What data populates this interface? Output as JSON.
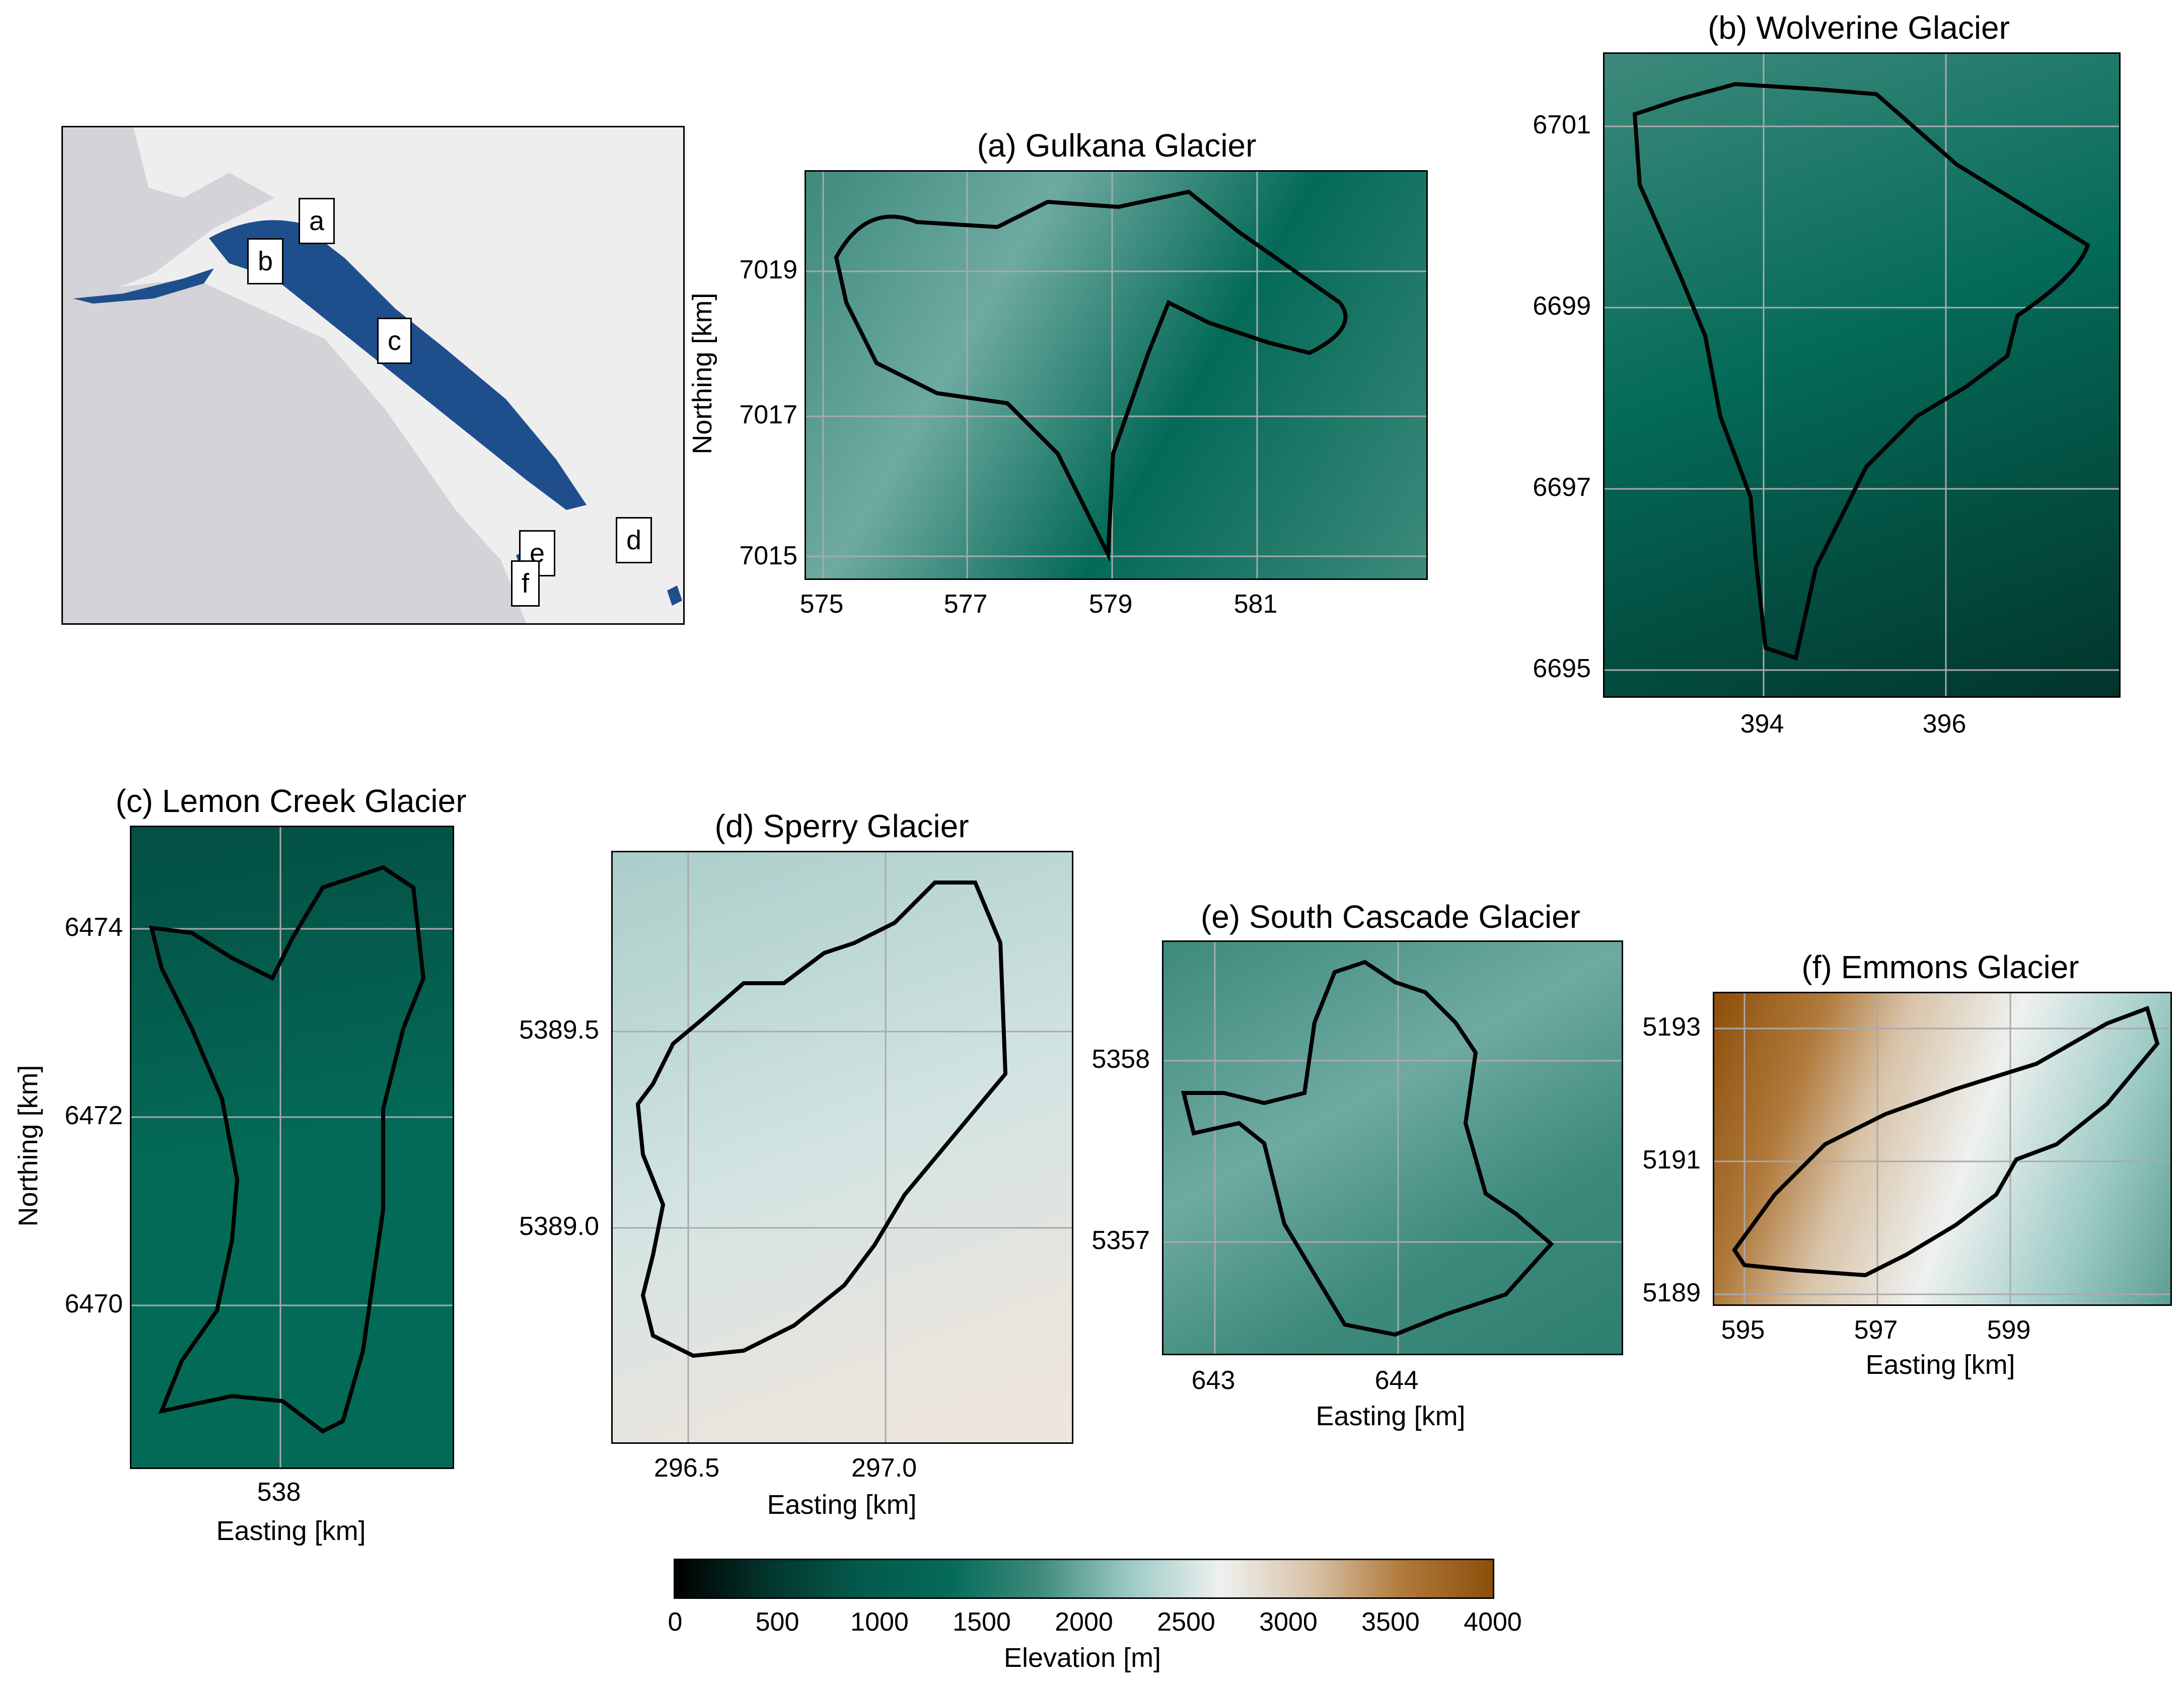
{
  "overview_map": {
    "labels": [
      "a",
      "b",
      "c",
      "d",
      "e",
      "f"
    ],
    "colors": {
      "land": "#d3d3d8",
      "ocean": "#eeeeef",
      "glacier": "#1f4e8c"
    }
  },
  "panels": {
    "a": {
      "title": "(a) Gulkana Glacier",
      "xticks": [
        "575",
        "577",
        "579",
        "581"
      ],
      "yticks": [
        "7019",
        "7017",
        "7015"
      ],
      "xlabel": "",
      "ylabel": "Northing [km]"
    },
    "b": {
      "title": "(b) Wolverine Glacier",
      "xticks": [
        "394",
        "396"
      ],
      "yticks": [
        "6701",
        "6699",
        "6697",
        "6695"
      ],
      "xlabel": "",
      "ylabel": ""
    },
    "c": {
      "title": "(c) Lemon Creek Glacier",
      "xticks": [
        "538"
      ],
      "yticks": [
        "6474",
        "6472",
        "6470"
      ],
      "xlabel": "Easting [km]",
      "ylabel": "Northing [km]"
    },
    "d": {
      "title": "(d) Sperry Glacier",
      "xticks": [
        "296.5",
        "297.0"
      ],
      "yticks": [
        "5389.5",
        "5389.0"
      ],
      "xlabel": "Easting [km]",
      "ylabel": ""
    },
    "e": {
      "title": "(e) South Cascade Glacier",
      "xticks": [
        "643",
        "644"
      ],
      "yticks": [
        "5358",
        "5357"
      ],
      "xlabel": "Easting [km]",
      "ylabel": ""
    },
    "f": {
      "title": "(f) Emmons Glacier",
      "xticks": [
        "595",
        "597",
        "599"
      ],
      "yticks": [
        "5193",
        "5191",
        "5189"
      ],
      "xlabel": "Easting [km]",
      "ylabel": ""
    }
  },
  "colorbar": {
    "label": "Elevation [m]",
    "ticks": [
      "0",
      "500",
      "1000",
      "1500",
      "2000",
      "2500",
      "3000",
      "3500",
      "4000"
    ],
    "range": [
      0,
      4000
    ],
    "colors": [
      "#000000",
      "#02342b",
      "#03594b",
      "#046a58",
      "#3d8a7c",
      "#9ccac5",
      "#eef1f0",
      "#d8c3a8",
      "#b07a3b",
      "#8c4f0a"
    ]
  }
}
